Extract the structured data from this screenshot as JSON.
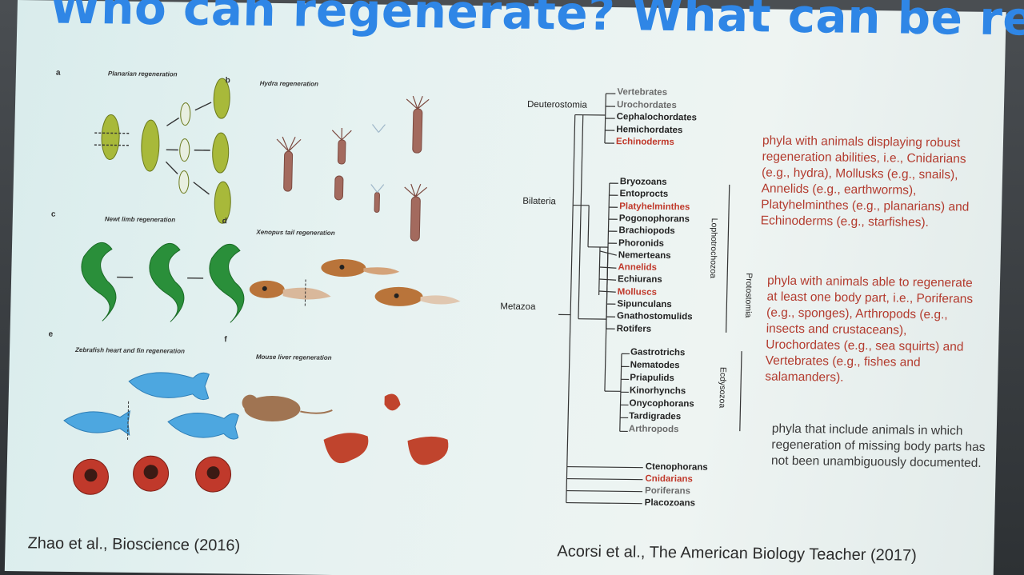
{
  "title": "Who can regenerate? What can be regenerated?",
  "figure_left": {
    "panels": [
      {
        "letter": "a",
        "caption": "Planarian regeneration"
      },
      {
        "letter": "b",
        "caption": "Hydra regeneration"
      },
      {
        "letter": "c",
        "caption": "Newt limb regeneration"
      },
      {
        "letter": "d",
        "caption": "Xenopus tail regeneration"
      },
      {
        "letter": "e",
        "caption": "Zebrafish heart and fin regeneration"
      },
      {
        "letter": "f",
        "caption": "Mouse liver regeneration"
      }
    ],
    "citation": "Zhao et al., Bioscience (2016)"
  },
  "tree": {
    "nodes": {
      "deuterostomia": "Deuterostomia",
      "bilateria": "Bilateria",
      "metazoa": "Metazoa",
      "lophotrochozoa": "Lophotrochozoa",
      "protostomia": "Protostomia",
      "ecdysozoa": "Ecdysozoa"
    },
    "deuterostomes": [
      {
        "name": "Vertebrates",
        "color": "grey"
      },
      {
        "name": "Urochordates",
        "color": "grey"
      },
      {
        "name": "Cephalochordates",
        "color": "black"
      },
      {
        "name": "Hemichordates",
        "color": "black"
      },
      {
        "name": "Echinoderms",
        "color": "red"
      }
    ],
    "lophotrochozoans": [
      {
        "name": "Bryozoans",
        "color": "black"
      },
      {
        "name": "Entoprocts",
        "color": "black"
      },
      {
        "name": "Platyhelminthes",
        "color": "red"
      },
      {
        "name": "Pogonophorans",
        "color": "black"
      },
      {
        "name": "Brachiopods",
        "color": "black"
      },
      {
        "name": "Phoronids",
        "color": "black"
      },
      {
        "name": "Nemerteans",
        "color": "black"
      },
      {
        "name": "Annelids",
        "color": "red"
      },
      {
        "name": "Echiurans",
        "color": "black"
      },
      {
        "name": "Molluscs",
        "color": "red"
      },
      {
        "name": "Sipunculans",
        "color": "black"
      },
      {
        "name": "Gnathostomulids",
        "color": "black"
      },
      {
        "name": "Rotifers",
        "color": "black"
      }
    ],
    "ecdysozoans": [
      {
        "name": "Gastrotrichs",
        "color": "black"
      },
      {
        "name": "Nematodes",
        "color": "black"
      },
      {
        "name": "Priapulids",
        "color": "black"
      },
      {
        "name": "Kinorhynchs",
        "color": "black"
      },
      {
        "name": "Onycophorans",
        "color": "black"
      },
      {
        "name": "Tardigrades",
        "color": "black"
      },
      {
        "name": "Arthropods",
        "color": "grey"
      }
    ],
    "basal": [
      {
        "name": "Ctenophorans",
        "color": "black"
      },
      {
        "name": "Cnidarians",
        "color": "red"
      },
      {
        "name": "Poriferans",
        "color": "grey"
      },
      {
        "name": "Placozoans",
        "color": "black"
      }
    ],
    "citation": "Acorsi et al., The American Biology Teacher (2017)"
  },
  "legend": {
    "robust": "phyla with animals displaying robust regeneration abilities, i.e., Cnidarians (e.g., hydra), Mollusks (e.g., snails), Annelids (e.g., earthworms), Platyhelminthes (e.g., planarians) and Echinoderms (e.g., starfishes).",
    "partial": "phyla with animals able to regenerate at least one body part, i.e., Poriferans (e.g., sponges), Arthropods (e.g., insects and crustaceans), Urochordates (e.g., sea squirts) and Vertebrates (e.g., fishes and salamanders).",
    "undocumented": "phyla that include animals in which regeneration of missing body parts has not been unambiguously documented."
  },
  "colors": {
    "title": "#2f86e6",
    "red_taxa": "#c0392b",
    "partial_taxa": "#6b6b6b"
  }
}
